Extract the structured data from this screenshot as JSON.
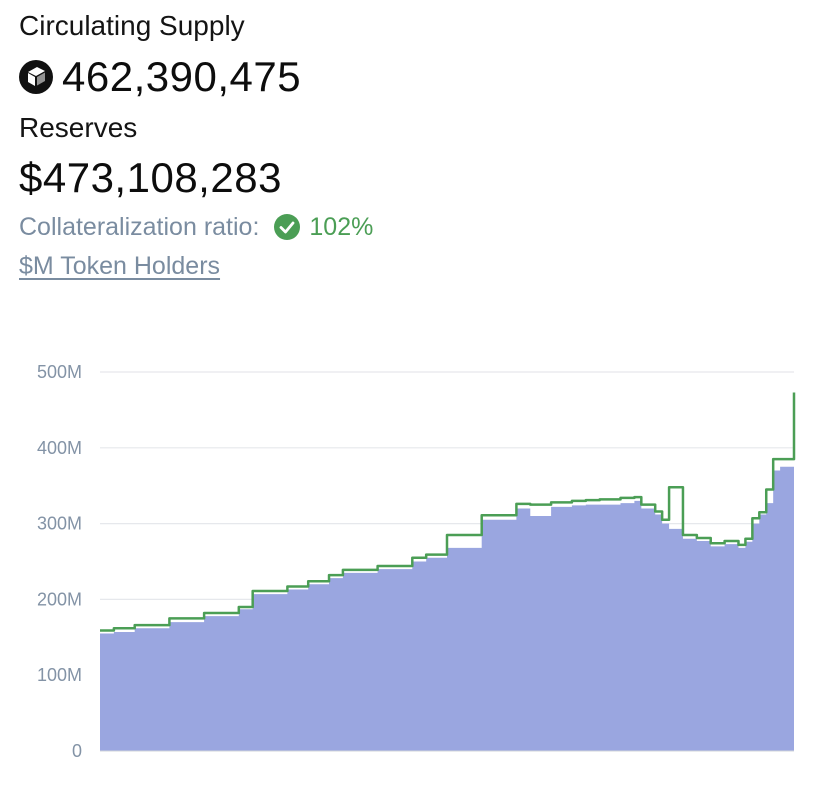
{
  "header": {
    "supply_label": "Circulating Supply",
    "supply_value": "462,390,475",
    "token_icon": "m-token-icon",
    "reserves_label": "Reserves",
    "reserves_value": "$473,108,283",
    "collateral_label": "Collateralization ratio:",
    "collateral_value": "102%",
    "holders_link": "$M Token Holders"
  },
  "colors": {
    "area_fill": "#9aa6e0",
    "line": "#4b9e55",
    "check": "#4b9e55",
    "grid": "#e6e8ec",
    "tick": "#8393a6"
  },
  "chart_data": {
    "type": "area",
    "ylim": [
      0,
      500
    ],
    "ytick_values": [
      0,
      100,
      200,
      300,
      400,
      500
    ],
    "ytick_labels": [
      "0",
      "100M",
      "200M",
      "300M",
      "400M",
      "500M"
    ],
    "x": [
      0,
      2,
      5,
      10,
      15,
      20,
      22,
      27,
      30,
      33,
      35,
      40,
      45,
      47,
      50,
      55,
      60,
      62,
      65,
      68,
      70,
      72,
      75,
      77,
      78,
      80,
      81,
      82,
      84,
      86,
      88,
      90,
      92,
      93,
      94,
      95,
      96,
      97,
      98,
      100
    ],
    "series": [
      {
        "label": "supply",
        "values": [
          155,
          157,
          162,
          170,
          178,
          187,
          207,
          213,
          220,
          228,
          235,
          240,
          250,
          255,
          268,
          305,
          320,
          310,
          322,
          324,
          325,
          325,
          327,
          330,
          320,
          312,
          300,
          293,
          280,
          277,
          270,
          273,
          268,
          276,
          300,
          312,
          327,
          370,
          375,
          462
        ]
      },
      {
        "label": "reserves",
        "values": [
          159,
          162,
          166,
          175,
          182,
          190,
          211,
          217,
          224,
          232,
          239,
          244,
          255,
          259,
          285,
          311,
          326,
          325,
          328,
          330,
          331,
          332,
          334,
          335,
          325,
          316,
          305,
          348,
          285,
          281,
          274,
          277,
          272,
          280,
          307,
          315,
          345,
          385,
          385,
          473
        ]
      }
    ]
  }
}
